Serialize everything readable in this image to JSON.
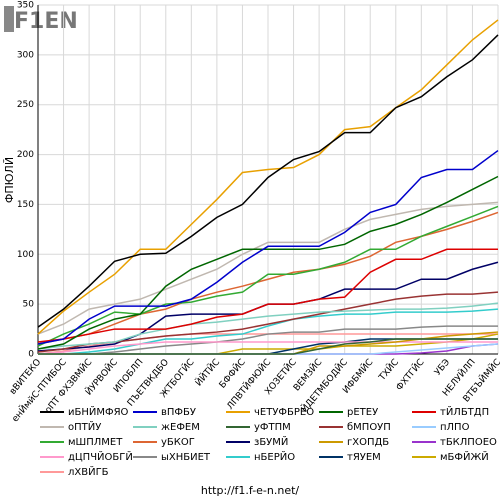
{
  "logo": "F1EN",
  "footer": "http://f1.f-e-n.net/",
  "chart_data": {
    "type": "line",
    "y_label": "ФПЮЛЙ",
    "categories": [
      "вВИТЕКО",
      "енЙмйС-ПТИБОС",
      "оПТ ФХЗВМЙС",
      "ЙУРВОЙС",
      "ИПОБЛП",
      "ПЪЕТВКДБО",
      "ЖТБОГЙС",
      "ЙЙТЙС",
      "БФФЙС",
      "ЛПВТЙФЮЙС",
      "ХОЗЕТЙС",
      "ВЕМЗЙС",
      "ЙДЕТМБОДЙС",
      "ИФБМЙС",
      "ТХЙС",
      "ФХТГЙС",
      "УБЭ",
      "НЕЛУЙЛП",
      "ВТБЪЙМЙС"
    ],
    "ylim": [
      0,
      350
    ],
    "yticks": [
      0,
      50,
      100,
      150,
      200,
      250,
      300,
      350
    ],
    "grid": true,
    "series": [
      {
        "name": "иБНЙМФЯО",
        "color": "#000000",
        "values": [
          27,
          45,
          68,
          93,
          100,
          101,
          118,
          137,
          150,
          177,
          195,
          203,
          222,
          222,
          247,
          258,
          278,
          295,
          320
        ]
      },
      {
        "name": "вПФБУ",
        "color": "#0000cc",
        "values": [
          10,
          15,
          35,
          48,
          48,
          48,
          55,
          72,
          92,
          108,
          108,
          108,
          122,
          142,
          150,
          177,
          185,
          185,
          204
        ]
      },
      {
        "name": "чЕТУФБРЕО",
        "color": "#e8a000",
        "values": [
          20,
          43,
          62,
          80,
          105,
          105,
          130,
          155,
          182,
          185,
          187,
          200,
          225,
          228,
          247,
          265,
          290,
          315,
          335
        ]
      },
      {
        "name": "рЕТЕУ",
        "color": "#006600",
        "values": [
          5,
          10,
          25,
          35,
          40,
          68,
          85,
          95,
          105,
          105,
          105,
          105,
          110,
          123,
          130,
          140,
          152,
          165,
          178
        ]
      },
      {
        "name": "тЙЛБТДП",
        "color": "#dd0000",
        "values": [
          12,
          15,
          20,
          25,
          25,
          25,
          30,
          37,
          40,
          50,
          50,
          55,
          57,
          82,
          95,
          95,
          105,
          105,
          105
        ]
      },
      {
        "name": "оПТЙУ",
        "color": "#c0b8b0",
        "values": [
          20,
          30,
          45,
          50,
          55,
          65,
          75,
          85,
          100,
          112,
          112,
          112,
          125,
          135,
          140,
          145,
          148,
          150,
          152
        ]
      },
      {
        "name": "жЕФЕМ",
        "color": "#80d0c0",
        "values": [
          5,
          8,
          10,
          12,
          20,
          25,
          30,
          32,
          35,
          38,
          40,
          42,
          43,
          44,
          45,
          45,
          46,
          48,
          51
        ]
      },
      {
        "name": "уФТПМ",
        "color": "#336633",
        "values": [
          0,
          0,
          0,
          0,
          0,
          0,
          0,
          0,
          0,
          0,
          0,
          5,
          10,
          12,
          15,
          15,
          15,
          15,
          15
        ]
      },
      {
        "name": "бМПОУП",
        "color": "#993333",
        "values": [
          2,
          5,
          10,
          12,
          15,
          18,
          20,
          22,
          25,
          30,
          35,
          40,
          45,
          50,
          55,
          58,
          60,
          60,
          62
        ]
      },
      {
        "name": "пЛПО",
        "color": "#99ccff",
        "values": [
          0,
          0,
          0,
          0,
          0,
          0,
          0,
          0,
          0,
          0,
          0,
          0,
          0,
          0,
          2,
          4,
          6,
          8,
          10
        ]
      },
      {
        "name": "мШПЛМЕТ",
        "color": "#33aa33",
        "values": [
          8,
          20,
          30,
          42,
          40,
          50,
          52,
          58,
          62,
          80,
          80,
          85,
          92,
          105,
          105,
          118,
          128,
          138,
          148
        ]
      },
      {
        "name": "уБКОГ",
        "color": "#dd6633",
        "values": [
          10,
          15,
          20,
          30,
          40,
          45,
          55,
          62,
          68,
          75,
          82,
          85,
          90,
          98,
          112,
          118,
          125,
          133,
          142
        ]
      },
      {
        "name": "зБУМЙ",
        "color": "#000066",
        "values": [
          3,
          5,
          7,
          10,
          20,
          38,
          40,
          40,
          40,
          50,
          50,
          55,
          65,
          65,
          65,
          75,
          75,
          85,
          92
        ]
      },
      {
        "name": "гХОПДБ",
        "color": "#cc9900",
        "values": [
          0,
          0,
          0,
          0,
          0,
          0,
          0,
          0,
          0,
          0,
          0,
          8,
          8,
          10,
          12,
          15,
          18,
          20,
          22
        ]
      },
      {
        "name": "тБКЛПОЕО",
        "color": "#9933cc",
        "values": [
          0,
          0,
          0,
          0,
          0,
          0,
          0,
          0,
          0,
          0,
          0,
          0,
          0,
          0,
          0,
          1,
          3,
          8,
          10
        ]
      },
      {
        "name": "дЦПЧЙОБГЙ",
        "color": "#ff99cc",
        "values": [
          0,
          2,
          5,
          8,
          10,
          12,
          12,
          12,
          12,
          12,
          12,
          12,
          12,
          12,
          12,
          12,
          12,
          12,
          12
        ]
      },
      {
        "name": "ыХНБИЕТ",
        "color": "#888888",
        "values": [
          0,
          0,
          0,
          2,
          5,
          8,
          10,
          12,
          15,
          20,
          22,
          22,
          25,
          25,
          25,
          27,
          28,
          28,
          28
        ]
      },
      {
        "name": "нБЕРЙО",
        "color": "#33cccc",
        "values": [
          0,
          0,
          2,
          5,
          10,
          15,
          15,
          18,
          20,
          28,
          35,
          38,
          40,
          40,
          42,
          42,
          42,
          43,
          45
        ]
      },
      {
        "name": "тЯУЕМ",
        "color": "#003366",
        "values": [
          0,
          0,
          0,
          0,
          0,
          0,
          0,
          0,
          0,
          0,
          5,
          10,
          12,
          15,
          15,
          15,
          15,
          15,
          15
        ]
      },
      {
        "name": "мБФЙЖЙ",
        "color": "#ccaa00",
        "values": [
          0,
          0,
          0,
          0,
          0,
          0,
          0,
          0,
          5,
          5,
          5,
          5,
          8,
          8,
          8,
          10,
          12,
          15,
          20
        ]
      },
      {
        "name": "лХВЙГБ",
        "color": "#ff9999",
        "values": [
          0,
          3,
          8,
          12,
          15,
          18,
          20,
          20,
          20,
          20,
          20,
          20,
          20,
          20,
          20,
          20,
          20,
          20,
          20
        ]
      }
    ]
  }
}
